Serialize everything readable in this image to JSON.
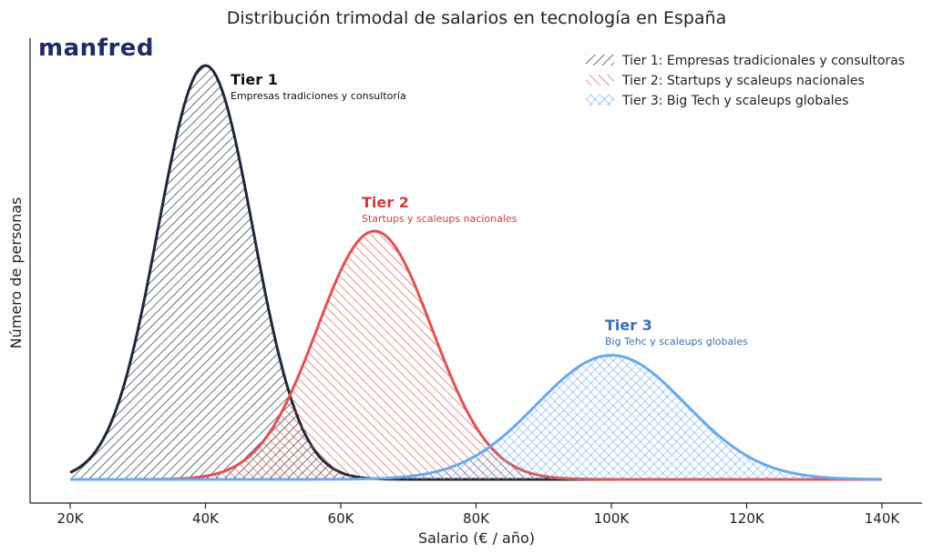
{
  "brand": {
    "name": "manfred",
    "accent_color": "#19b6a2",
    "color": "#1f2a66"
  },
  "chart_data": {
    "type": "area",
    "title": "Distribución trimodal de salarios en tecnología en España",
    "xlabel": "Salario (€ / año)",
    "ylabel": "Número de personas",
    "xlim": [
      20000,
      140000
    ],
    "xticks": [
      20000,
      40000,
      60000,
      80000,
      100000,
      120000,
      140000
    ],
    "xtick_labels": [
      "20K",
      "40K",
      "60K",
      "80K",
      "100K",
      "120K",
      "140K"
    ],
    "yticks_shown": false,
    "grid": false,
    "legend_position": "top-right",
    "series": [
      {
        "name": "Tier 1: Empresas tradicionales y consultoras",
        "mean": 40000,
        "std": 7000,
        "peak": 1.0,
        "color": "#1e2838",
        "hatch": "diagonal-right",
        "annotation": {
          "title": "Tier 1",
          "subtitle": "Empresas tradiciones y consultoría"
        }
      },
      {
        "name": "Tier 2: Startups y scaleups nacionales",
        "mean": 65000,
        "std": 8500,
        "peak": 0.6,
        "color": "#e15252",
        "hatch": "diagonal-left",
        "annotation": {
          "title": "Tier 2",
          "subtitle": "Startups y scaleups nacionales"
        }
      },
      {
        "name": "Tier 3: Big Tech y scaleups globales",
        "mean": 100000,
        "std": 11000,
        "peak": 0.3,
        "color": "#6aa9ee",
        "hatch": "cross",
        "annotation": {
          "title": "Tier 3",
          "subtitle": "Big Tehc y scaleups globales"
        }
      }
    ]
  }
}
